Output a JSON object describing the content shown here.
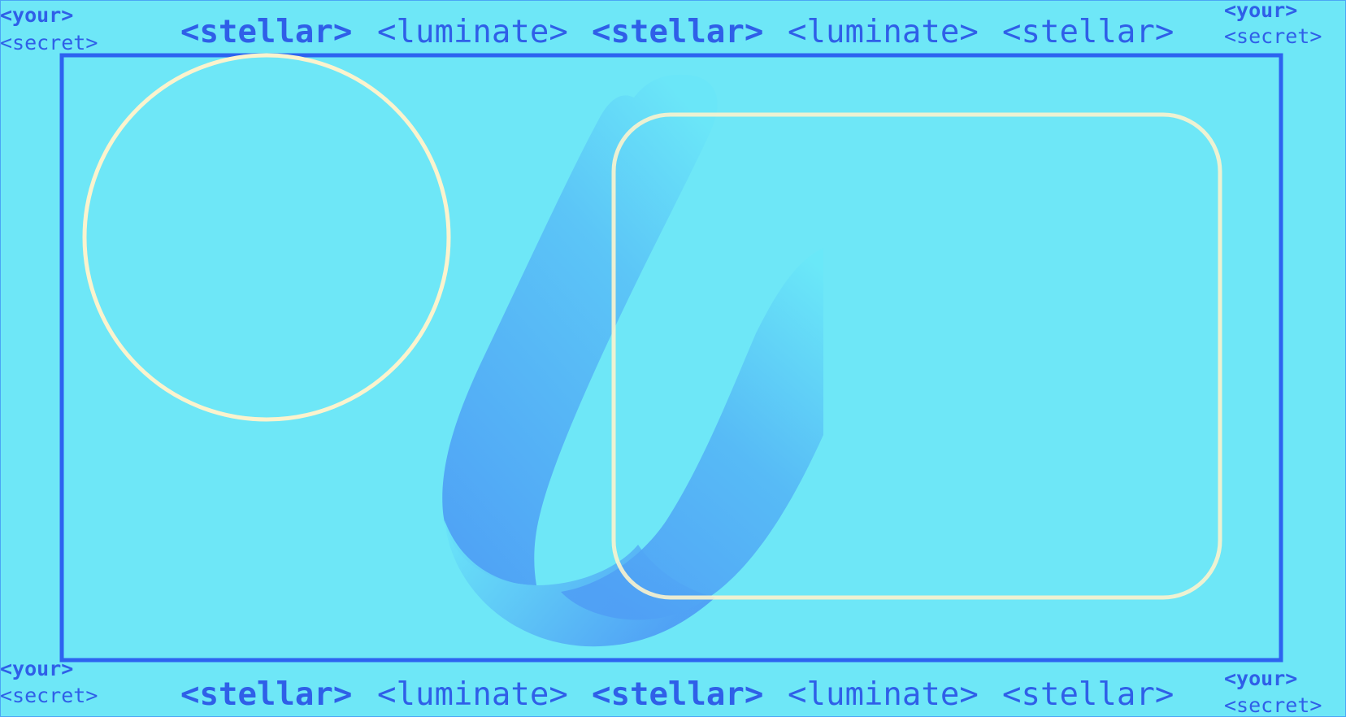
{
  "colors": {
    "background": "#6ee7f7",
    "frame": "#2d63f0",
    "text": "#2f5fe8",
    "outline_shapes": "#fbf3cd",
    "ribbon_light": "#6ae6f8",
    "ribbon_dark": "#4e9cf5"
  },
  "corners": {
    "top_left": {
      "line1": "<your>",
      "line2": "<secret>"
    },
    "top_right": {
      "line1": "<your>",
      "line2": "<secret>"
    },
    "bottom_left": {
      "line1": "<your>",
      "line2": "<secret>"
    },
    "bottom_right": {
      "line1": "<your>",
      "line2": "<secret>"
    }
  },
  "banner_top": [
    "<stellar>",
    "<luminate>",
    "<stellar>",
    "<luminate>",
    "<stellar>"
  ],
  "banner_bottom": [
    "<stellar>",
    "<luminate>",
    "<stellar>",
    "<luminate>",
    "<stellar>"
  ],
  "logo_icon": "ribbon-swoosh-icon"
}
